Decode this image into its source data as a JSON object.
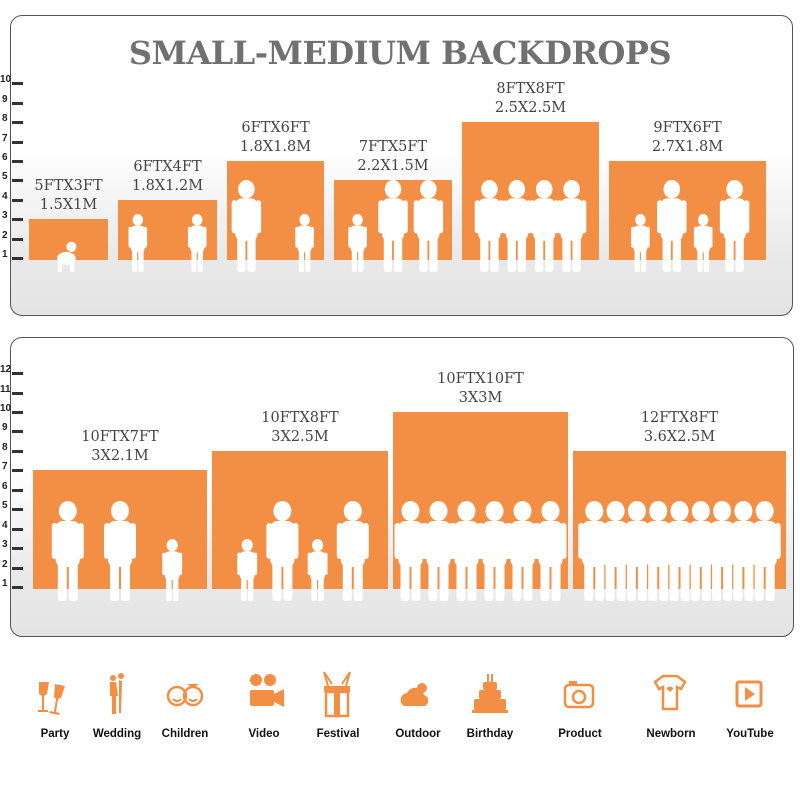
{
  "title": "SMALL-MEDIUM BACKDROPS",
  "colors": {
    "bar": "#f28f45",
    "title": "#707070",
    "figure": "#ffffff"
  },
  "panels": [
    {
      "axis_max": 10,
      "backdrops": [
        {
          "ft": "5FTX3FT",
          "m": "1.5X1M",
          "height_ft": 3,
          "figures": [
            "baby"
          ]
        },
        {
          "ft": "6FTX4FT",
          "m": "1.8X1.2M",
          "height_ft": 4,
          "figures": [
            "child",
            "child"
          ]
        },
        {
          "ft": "6FTX6FT",
          "m": "1.8X1.8M",
          "height_ft": 6,
          "figures": [
            "adult",
            "child"
          ]
        },
        {
          "ft": "7FTX5FT",
          "m": "2.2X1.5M",
          "height_ft": 5,
          "figures": [
            "child",
            "adult",
            "adult"
          ]
        },
        {
          "ft": "8FTX8FT",
          "m": "2.5X2.5M",
          "height_ft": 8,
          "figures": [
            "adult",
            "adult",
            "adult",
            "adult"
          ]
        },
        {
          "ft": "9FTX6FT",
          "m": "2.7X1.8M",
          "height_ft": 6,
          "figures": [
            "child",
            "adult",
            "child",
            "adult"
          ]
        }
      ]
    },
    {
      "axis_max": 12,
      "backdrops": [
        {
          "ft": "10FTX7FT",
          "m": "3X2.1M",
          "height_ft": 7,
          "figures": [
            "adult",
            "adult",
            "child"
          ]
        },
        {
          "ft": "10FTX8FT",
          "m": "3X2.5M",
          "height_ft": 8,
          "figures": [
            "child",
            "adult",
            "child",
            "adult"
          ]
        },
        {
          "ft": "10FTX10FT",
          "m": "3X3M",
          "height_ft": 10,
          "figures": [
            "adult",
            "adult",
            "adult",
            "adult",
            "adult",
            "adult"
          ]
        },
        {
          "ft": "12FTX8FT",
          "m": "3.6X2.5M",
          "height_ft": 8,
          "figures": [
            "adult",
            "adult",
            "adult",
            "adult",
            "adult",
            "adult",
            "adult",
            "adult",
            "adult"
          ]
        }
      ]
    }
  ],
  "uses": [
    {
      "label": "Party",
      "icon": "champagne-glasses-icon"
    },
    {
      "label": "Wedding",
      "icon": "wedding-couple-icon"
    },
    {
      "label": "Children",
      "icon": "children-faces-icon"
    },
    {
      "label": "Video",
      "icon": "film-camera-icon"
    },
    {
      "label": "Festival",
      "icon": "gift-box-icon"
    },
    {
      "label": "Outdoor",
      "icon": "cloud-icon"
    },
    {
      "label": "Birthday",
      "icon": "birthday-cake-icon"
    },
    {
      "label": "Product",
      "icon": "camera-icon"
    },
    {
      "label": "Newborn",
      "icon": "baby-onesie-icon"
    },
    {
      "label": "YouTube",
      "icon": "play-button-icon"
    }
  ]
}
